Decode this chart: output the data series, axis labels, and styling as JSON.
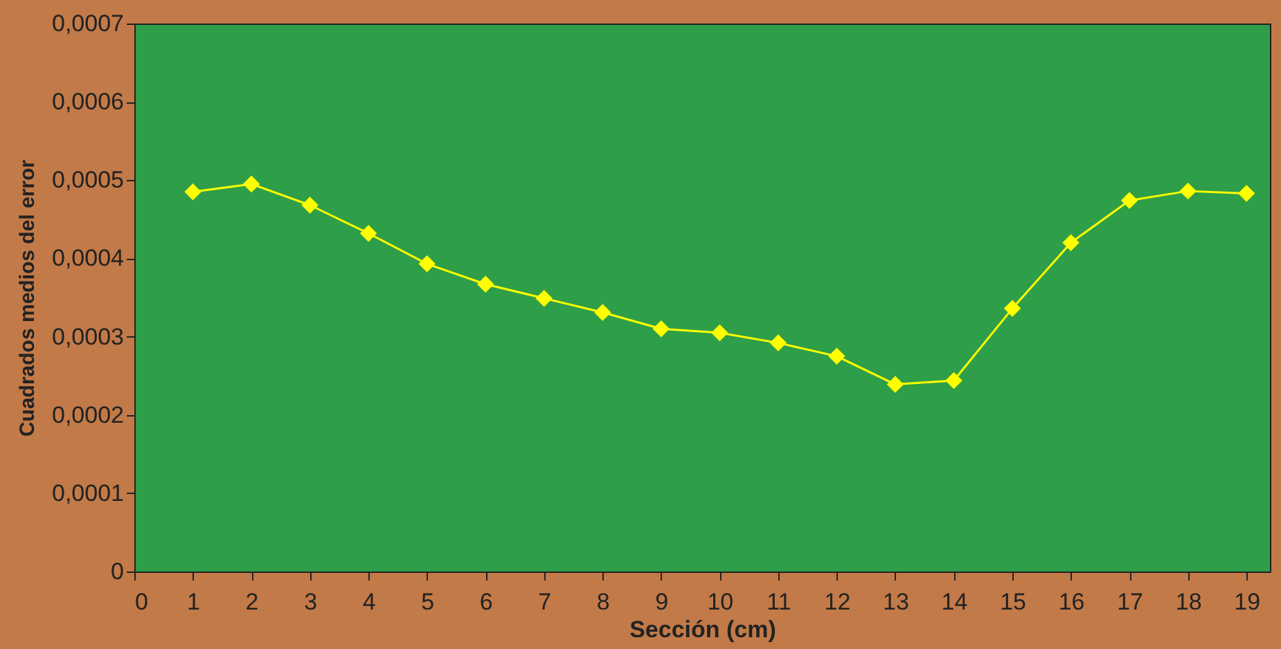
{
  "chart_data": {
    "type": "line",
    "xlabel": "Sección (cm)",
    "ylabel": "Cuadrados medios del error",
    "x": [
      1,
      2,
      3,
      4,
      5,
      6,
      7,
      8,
      9,
      10,
      11,
      12,
      13,
      14,
      15,
      16,
      17,
      18,
      19
    ],
    "series": [
      {
        "color": "#ffff00",
        "values": [
          0.000485,
          0.000495,
          0.000468,
          0.000432,
          0.000393,
          0.000367,
          0.000349,
          0.000331,
          0.00031,
          0.000305,
          0.000292,
          0.000275,
          0.000239,
          0.000244,
          0.000336,
          0.00042,
          0.000474,
          0.000486,
          0.000483
        ]
      }
    ],
    "xlim": [
      0,
      19.4
    ],
    "xticks": [
      0,
      1,
      2,
      3,
      4,
      5,
      6,
      7,
      8,
      9,
      10,
      11,
      12,
      13,
      14,
      15,
      16,
      17,
      18,
      19
    ],
    "ylim": [
      0,
      0.0007
    ],
    "yticks": [
      {
        "value": 0,
        "label": "0"
      },
      {
        "value": 0.0001,
        "label": "0,0001"
      },
      {
        "value": 0.0002,
        "label": "0,0002"
      },
      {
        "value": 0.0003,
        "label": "0,0003"
      },
      {
        "value": 0.0004,
        "label": "0,0004"
      },
      {
        "value": 0.0005,
        "label": "0,0005"
      },
      {
        "value": 0.0006,
        "label": "0,0006"
      },
      {
        "value": 0.0007,
        "label": "0,0007"
      }
    ],
    "marker": "diamond",
    "line_style": "solid",
    "grid": false
  }
}
